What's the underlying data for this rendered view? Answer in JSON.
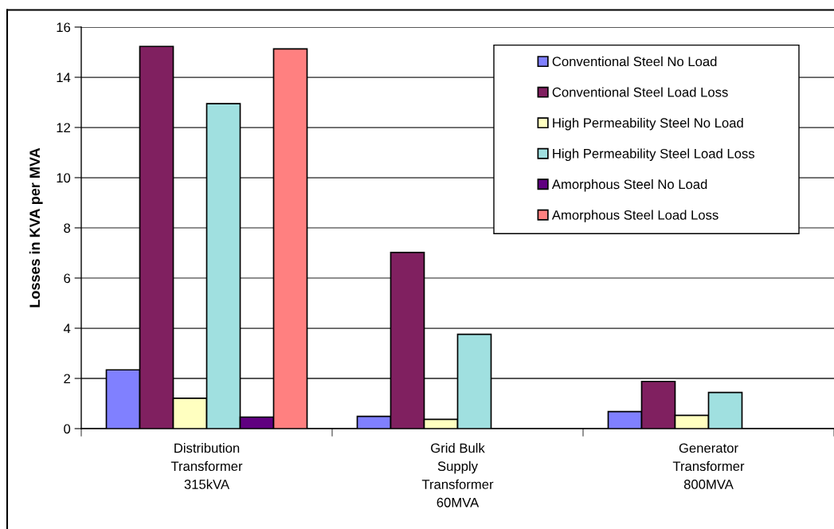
{
  "chart_data": {
    "type": "bar",
    "ylabel": "Losses in KVA per MVA",
    "categories": [
      "Distribution\nTransformer\n315kVA",
      "Grid Bulk\nSupply\nTransformer\n60MVA",
      "Generator\nTransformer\n800MVA"
    ],
    "series": [
      {
        "name": "Conventional Steel No Load",
        "color": "#8080ff",
        "values": [
          2.34,
          0.49,
          0.68
        ]
      },
      {
        "name": "Conventional Steel Load Loss",
        "color": "#802060",
        "values": [
          15.23,
          7.02,
          1.88
        ]
      },
      {
        "name": "High Permeability Steel No Load",
        "color": "#ffffc0",
        "values": [
          1.21,
          0.37,
          0.53
        ]
      },
      {
        "name": "High Permeability Steel Load Loss",
        "color": "#a0e0e0",
        "values": [
          12.95,
          3.76,
          1.44
        ]
      },
      {
        "name": "Amorphous Steel No Load",
        "color": "#600080",
        "values": [
          0.46,
          null,
          null
        ]
      },
      {
        "name": "Amorphous Steel Load Loss",
        "color": "#ff8080",
        "values": [
          15.13,
          null,
          null
        ]
      }
    ],
    "ylim": [
      0,
      16
    ],
    "yticks": [
      0,
      2,
      4,
      6,
      8,
      10,
      12,
      14,
      16
    ],
    "grid": "y",
    "legend": "top right"
  }
}
